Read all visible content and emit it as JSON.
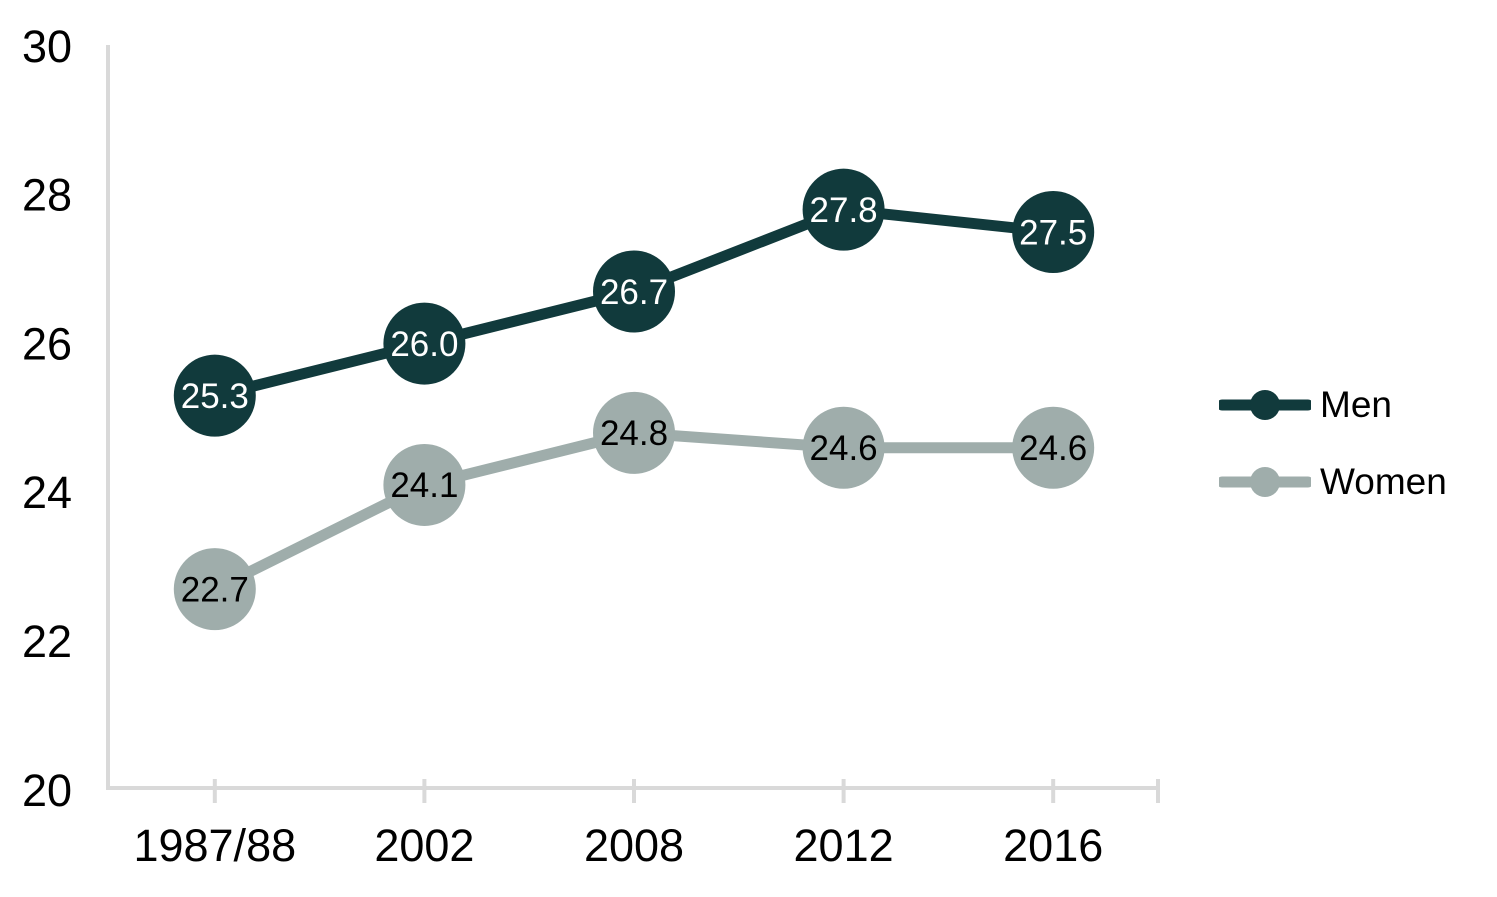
{
  "chart_data": {
    "type": "line",
    "title": "",
    "xlabel": "",
    "ylabel": "",
    "categories": [
      "1987/88",
      "2002",
      "2008",
      "2012",
      "2016"
    ],
    "series": [
      {
        "name": "Men",
        "values": [
          25.3,
          26.0,
          26.7,
          27.8,
          27.5
        ],
        "labels": [
          "25.3",
          "26.0",
          "26.7",
          "27.8",
          "27.5"
        ],
        "color": "#113a3c",
        "label_color": "#ffffff"
      },
      {
        "name": "Women",
        "values": [
          22.7,
          24.1,
          24.8,
          24.6,
          24.6
        ],
        "labels": [
          "22.7",
          "24.1",
          "24.8",
          "24.6",
          "24.6"
        ],
        "color": "#9fadab",
        "label_color": "#000000"
      }
    ],
    "ylim": [
      20,
      30
    ],
    "yticks": [
      20,
      22,
      24,
      26,
      28,
      30
    ],
    "ytick_labels": [
      "20",
      "22",
      "24",
      "26",
      "28",
      "30"
    ],
    "grid": false,
    "legend_position": "right",
    "axis_color": "#d9d9d9",
    "text_color": "#000000",
    "background": "#ffffff"
  }
}
